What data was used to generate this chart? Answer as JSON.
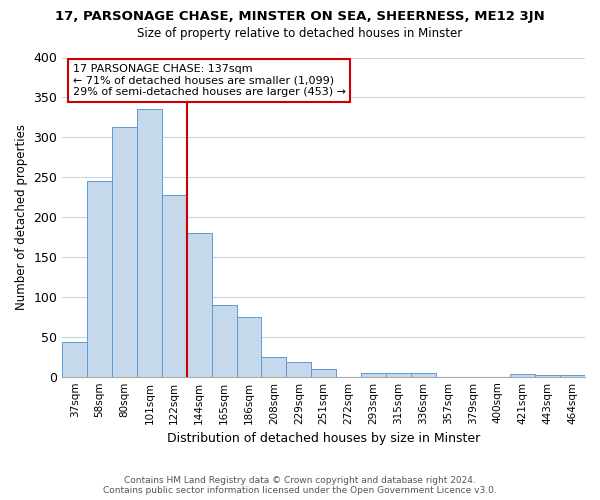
{
  "title": "17, PARSONAGE CHASE, MINSTER ON SEA, SHEERNESS, ME12 3JN",
  "subtitle": "Size of property relative to detached houses in Minster",
  "xlabel": "Distribution of detached houses by size in Minster",
  "ylabel": "Number of detached properties",
  "bar_labels": [
    "37sqm",
    "58sqm",
    "80sqm",
    "101sqm",
    "122sqm",
    "144sqm",
    "165sqm",
    "186sqm",
    "208sqm",
    "229sqm",
    "251sqm",
    "272sqm",
    "293sqm",
    "315sqm",
    "336sqm",
    "357sqm",
    "379sqm",
    "400sqm",
    "421sqm",
    "443sqm",
    "464sqm"
  ],
  "bar_values": [
    43,
    245,
    313,
    335,
    228,
    180,
    90,
    75,
    25,
    18,
    10,
    0,
    5,
    5,
    4,
    0,
    0,
    0,
    3,
    2,
    2
  ],
  "bar_color": "#c6d9ec",
  "bar_edge_color": "#5b9bd5",
  "vline_color": "#cc0000",
  "annotation_title": "17 PARSONAGE CHASE: 137sqm",
  "annotation_line1": "← 71% of detached houses are smaller (1,099)",
  "annotation_line2": "29% of semi-detached houses are larger (453) →",
  "annotation_box_color": "#ffffff",
  "annotation_box_edge": "#cc0000",
  "ylim": [
    0,
    400
  ],
  "yticks": [
    0,
    50,
    100,
    150,
    200,
    250,
    300,
    350,
    400
  ],
  "footer_line1": "Contains HM Land Registry data © Crown copyright and database right 2024.",
  "footer_line2": "Contains public sector information licensed under the Open Government Licence v3.0.",
  "background_color": "#ffffff",
  "grid_color": "#c8d8e8"
}
